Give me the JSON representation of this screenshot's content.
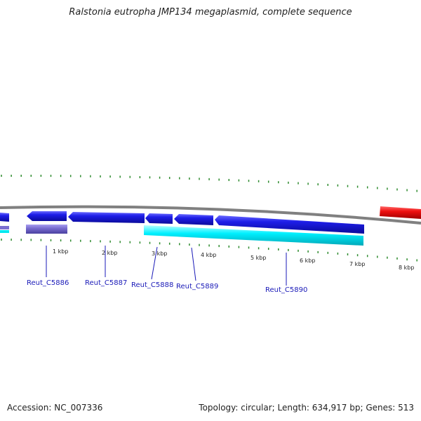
{
  "title": "Ralstonia eutropha JMP134 megaplasmid, complete sequence",
  "footer": {
    "accession": "Accession: NC_007336",
    "summary": "Topology: circular; Length: 634,917 bp; Genes: 513"
  },
  "scale_labels": [
    "1 kbp",
    "2 kbp",
    "3 kbp",
    "4 kbp",
    "5 kbp",
    "6 kbp",
    "7 kbp",
    "8 kbp"
  ],
  "gene_labels": [
    "Reut_C5886",
    "Reut_C5887",
    "Reut_C5888",
    "Reut_C5889",
    "Reut_C5890"
  ],
  "colors": {
    "backbone": "#808080",
    "cds": "#1414d8",
    "cds_top": "#5a5aff",
    "lilac": "#7b6fd0",
    "cyan": "#00ffff",
    "cyan_dark": "#00b0c0",
    "red": "#e01010",
    "tick": "#2e8b2e",
    "label_line": "#1a1ab8"
  }
}
